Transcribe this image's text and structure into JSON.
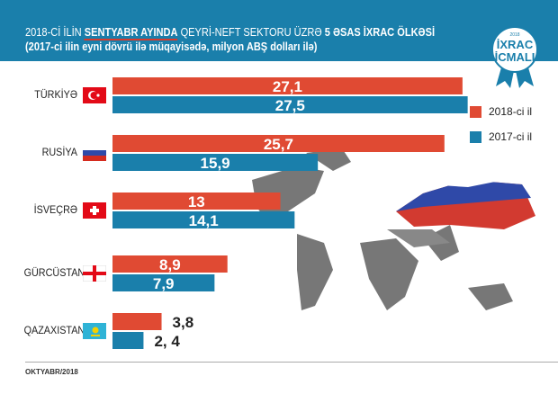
{
  "header": {
    "title_part1": "2018-Cİ İLİN ",
    "title_bold": "SENTYABR AYINDA",
    "title_part2": "  QEYRİ-NEFT SEKTORU ÜZRƏ ",
    "title_bold2": "5 ƏSAS İXRAC ÖLKƏSİ",
    "subtitle": "(2017-ci ilin eyni dövrü ilə müqayisədə, milyon ABŞ dolları ilə)"
  },
  "badge": {
    "year": "2018",
    "line1": "İXRAC",
    "line2": "İCMALI"
  },
  "footer": "OKTYABR/2018",
  "chart_data": {
    "type": "bar",
    "orientation": "horizontal",
    "categories": [
      "TÜRKİYƏ",
      "RUSİYA",
      "İSVEÇRƏ",
      "GÜRCÜSTAN",
      "QAZAXISTAN"
    ],
    "series": [
      {
        "name": "2018-ci il",
        "color": "#e04a33",
        "values": [
          27.1,
          25.7,
          13,
          8.9,
          3.8
        ],
        "labels": [
          "27,1",
          "25,7",
          "13",
          "8,9",
          "3,8"
        ]
      },
      {
        "name": "2017-ci il",
        "color": "#1a7fab",
        "values": [
          27.5,
          15.9,
          14.1,
          7.9,
          2.4
        ],
        "labels": [
          "27,5",
          "15,9",
          "14,1",
          "7,9",
          "2, 4"
        ]
      }
    ],
    "legend": "right"
  }
}
